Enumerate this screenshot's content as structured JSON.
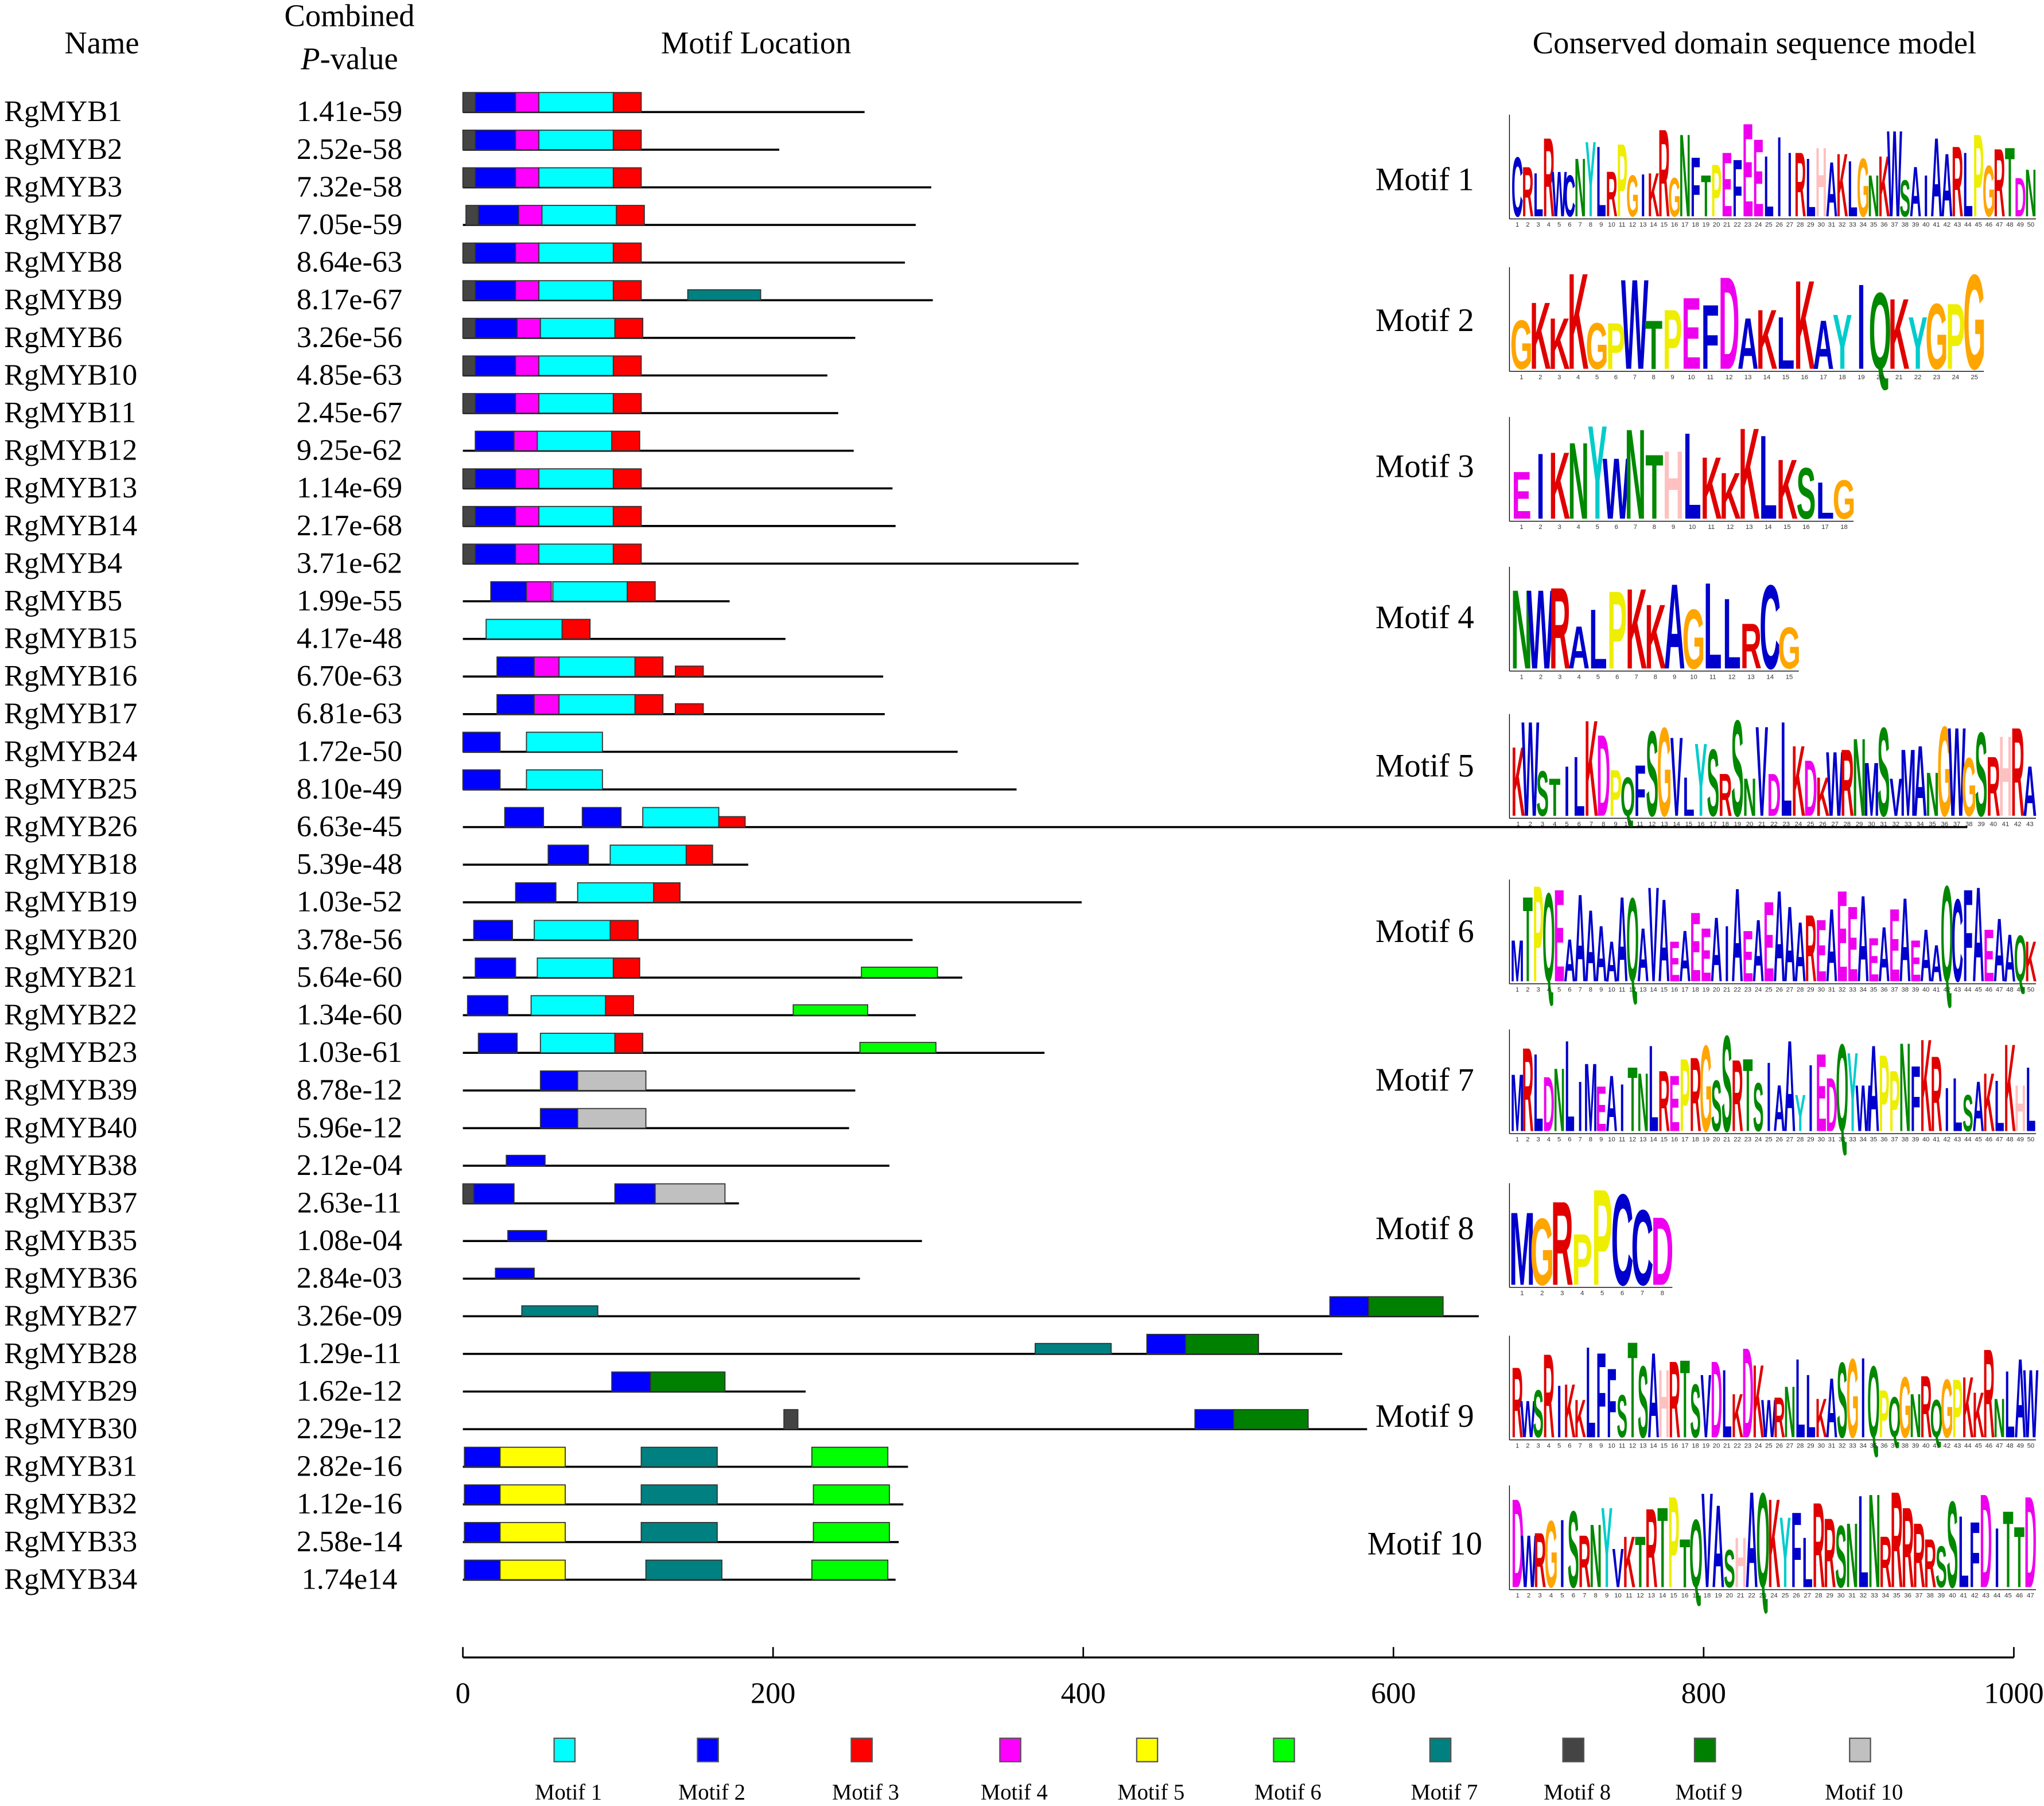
{
  "headers": {
    "name": "Name",
    "combined": "Combined",
    "p_italic": "P",
    "p_rest": "-value",
    "motif_location": "Motif Location",
    "conserved": "Conserved domain sequence model"
  },
  "motif_colors": {
    "1": "#00ffff",
    "2": "#0000ff",
    "3": "#ff0000",
    "4": "#ff00ff",
    "5": "#ffff00",
    "6": "#00ff00",
    "7": "#008080",
    "8": "#444444",
    "9": "#008000",
    "10": "#c0c0c0"
  },
  "legend": [
    "Motif 1",
    "Motif 2",
    "Motif 3",
    "Motif 4",
    "Motif 5",
    "Motif 6",
    "Motif 7",
    "Motif 8",
    "Motif 9",
    "Motif 10"
  ],
  "axis": {
    "min": 0,
    "max": 1000,
    "ticks": [
      "0",
      "200",
      "400",
      "600",
      "800",
      "1000"
    ]
  },
  "proteins": [
    {
      "name": "RgMYB1",
      "p": "1.41e-59",
      "length": 259,
      "motifs": [
        [
          8,
          0,
          8
        ],
        [
          2,
          8,
          34
        ],
        [
          4,
          34,
          49
        ],
        [
          1,
          49,
          97
        ],
        [
          3,
          97,
          115
        ]
      ]
    },
    {
      "name": "RgMYB2",
      "p": "2.52e-58",
      "length": 204,
      "motifs": [
        [
          8,
          0,
          8
        ],
        [
          2,
          8,
          34
        ],
        [
          4,
          34,
          49
        ],
        [
          1,
          49,
          97
        ],
        [
          3,
          97,
          115
        ]
      ]
    },
    {
      "name": "RgMYB3",
      "p": "7.32e-58",
      "length": 302,
      "motifs": [
        [
          8,
          0,
          8
        ],
        [
          2,
          8,
          34
        ],
        [
          4,
          34,
          49
        ],
        [
          1,
          49,
          97
        ],
        [
          3,
          97,
          115
        ]
      ]
    },
    {
      "name": "RgMYB7",
      "p": "7.05e-59",
      "length": 292,
      "motifs": [
        [
          8,
          2,
          10
        ],
        [
          2,
          10,
          36
        ],
        [
          4,
          36,
          51
        ],
        [
          1,
          51,
          99
        ],
        [
          3,
          99,
          117
        ]
      ]
    },
    {
      "name": "RgMYB8",
      "p": "8.64e-63",
      "length": 285,
      "motifs": [
        [
          8,
          0,
          8
        ],
        [
          2,
          8,
          34
        ],
        [
          4,
          34,
          49
        ],
        [
          1,
          49,
          97
        ],
        [
          3,
          97,
          115
        ]
      ]
    },
    {
      "name": "RgMYB9",
      "p": "8.17e-67",
      "length": 303,
      "motifs": [
        [
          8,
          0,
          8
        ],
        [
          2,
          8,
          34
        ],
        [
          4,
          34,
          49
        ],
        [
          1,
          49,
          97
        ],
        [
          3,
          97,
          115
        ],
        [
          7,
          145,
          192
        ]
      ]
    },
    {
      "name": "RgMYB6",
      "p": "3.26e-56",
      "length": 253,
      "motifs": [
        [
          8,
          0,
          8
        ],
        [
          2,
          8,
          35
        ],
        [
          4,
          35,
          50
        ],
        [
          1,
          50,
          98
        ],
        [
          3,
          98,
          116
        ]
      ]
    },
    {
      "name": "RgMYB10",
      "p": "4.85e-63",
      "length": 235,
      "motifs": [
        [
          8,
          0,
          8
        ],
        [
          2,
          8,
          34
        ],
        [
          4,
          34,
          49
        ],
        [
          1,
          49,
          97
        ],
        [
          3,
          97,
          115
        ]
      ]
    },
    {
      "name": "RgMYB11",
      "p": "2.45e-67",
      "length": 242,
      "motifs": [
        [
          8,
          0,
          8
        ],
        [
          2,
          8,
          34
        ],
        [
          4,
          34,
          49
        ],
        [
          1,
          49,
          97
        ],
        [
          3,
          97,
          115
        ]
      ]
    },
    {
      "name": "RgMYB12",
      "p": "9.25e-62",
      "length": 252,
      "motifs": [
        [
          2,
          8,
          33
        ],
        [
          4,
          33,
          48
        ],
        [
          1,
          48,
          96
        ],
        [
          3,
          96,
          114
        ]
      ]
    },
    {
      "name": "RgMYB13",
      "p": "1.14e-69",
      "length": 277,
      "motifs": [
        [
          8,
          0,
          8
        ],
        [
          2,
          8,
          34
        ],
        [
          4,
          34,
          49
        ],
        [
          1,
          49,
          97
        ],
        [
          3,
          97,
          115
        ]
      ]
    },
    {
      "name": "RgMYB14",
      "p": "2.17e-68",
      "length": 279,
      "motifs": [
        [
          8,
          0,
          8
        ],
        [
          2,
          8,
          34
        ],
        [
          4,
          34,
          49
        ],
        [
          1,
          49,
          97
        ],
        [
          3,
          97,
          115
        ]
      ]
    },
    {
      "name": "RgMYB4",
      "p": "3.71e-62",
      "length": 397,
      "motifs": [
        [
          8,
          0,
          8
        ],
        [
          2,
          8,
          34
        ],
        [
          4,
          34,
          49
        ],
        [
          1,
          49,
          97
        ],
        [
          3,
          97,
          115
        ]
      ]
    },
    {
      "name": "RgMYB5",
      "p": "1.99e-55",
      "length": 172,
      "motifs": [
        [
          2,
          18,
          41
        ],
        [
          4,
          41,
          57
        ],
        [
          1,
          58,
          106
        ],
        [
          3,
          106,
          124
        ]
      ]
    },
    {
      "name": "RgMYB15",
      "p": "4.17e-48",
      "length": 208,
      "motifs": [
        [
          1,
          15,
          64
        ],
        [
          3,
          64,
          82
        ]
      ]
    },
    {
      "name": "RgMYB16",
      "p": "6.70e-63",
      "length": 271,
      "motifs": [
        [
          2,
          22,
          46
        ],
        [
          4,
          46,
          62
        ],
        [
          1,
          62,
          111
        ],
        [
          3,
          111,
          129
        ],
        [
          3,
          137,
          155
        ]
      ]
    },
    {
      "name": "RgMYB17",
      "p": "6.81e-63",
      "length": 272,
      "motifs": [
        [
          2,
          22,
          46
        ],
        [
          4,
          46,
          62
        ],
        [
          1,
          62,
          111
        ],
        [
          3,
          111,
          129
        ],
        [
          3,
          137,
          155
        ]
      ]
    },
    {
      "name": "RgMYB24",
      "p": "1.72e-50",
      "length": 319,
      "motifs": [
        [
          2,
          0,
          24
        ],
        [
          1,
          41,
          90
        ]
      ]
    },
    {
      "name": "RgMYB25",
      "p": "8.10e-49",
      "length": 357,
      "motifs": [
        [
          2,
          0,
          24
        ],
        [
          1,
          41,
          90
        ]
      ]
    },
    {
      "name": "RgMYB26",
      "p": "6.63e-45",
      "length": 970,
      "motifs": [
        [
          2,
          27,
          52
        ],
        [
          2,
          77,
          102
        ],
        [
          1,
          116,
          165
        ],
        [
          3,
          165,
          182
        ]
      ]
    },
    {
      "name": "RgMYB18",
      "p": "5.39e-48",
      "length": 184,
      "motifs": [
        [
          2,
          55,
          81
        ],
        [
          1,
          95,
          144
        ],
        [
          3,
          144,
          161
        ]
      ]
    },
    {
      "name": "RgMYB19",
      "p": "1.03e-52",
      "length": 399,
      "motifs": [
        [
          2,
          34,
          60
        ],
        [
          1,
          74,
          123
        ],
        [
          3,
          123,
          140
        ]
      ]
    },
    {
      "name": "RgMYB20",
      "p": "3.78e-56",
      "length": 290,
      "motifs": [
        [
          2,
          7,
          32
        ],
        [
          1,
          46,
          95
        ],
        [
          3,
          95,
          113
        ]
      ]
    },
    {
      "name": "RgMYB21",
      "p": "5.64e-60",
      "length": 322,
      "motifs": [
        [
          2,
          8,
          34
        ],
        [
          1,
          48,
          97
        ],
        [
          3,
          97,
          114
        ],
        [
          6,
          257,
          306
        ]
      ]
    },
    {
      "name": "RgMYB22",
      "p": "1.34e-60",
      "length": 292,
      "motifs": [
        [
          2,
          3,
          29
        ],
        [
          1,
          44,
          92
        ],
        [
          3,
          92,
          110
        ],
        [
          6,
          213,
          261
        ]
      ]
    },
    {
      "name": "RgMYB23",
      "p": "1.03e-61",
      "length": 375,
      "motifs": [
        [
          2,
          10,
          35
        ],
        [
          1,
          50,
          98
        ],
        [
          3,
          98,
          116
        ],
        [
          6,
          256,
          305
        ]
      ]
    },
    {
      "name": "RgMYB39",
      "p": "8.78e-12",
      "length": 253,
      "motifs": [
        [
          2,
          50,
          74
        ],
        [
          10,
          74,
          118
        ]
      ]
    },
    {
      "name": "RgMYB40",
      "p": "5.96e-12",
      "length": 249,
      "motifs": [
        [
          2,
          50,
          74
        ],
        [
          10,
          74,
          118
        ]
      ]
    },
    {
      "name": "RgMYB38",
      "p": "2.12e-04",
      "length": 275,
      "motifs": [
        [
          2,
          28,
          53
        ]
      ]
    },
    {
      "name": "RgMYB37",
      "p": "2.63e-11",
      "length": 178,
      "motifs": [
        [
          8,
          0,
          7
        ],
        [
          2,
          7,
          33
        ],
        [
          2,
          98,
          124
        ],
        [
          10,
          124,
          169
        ]
      ]
    },
    {
      "name": "RgMYB35",
      "p": "1.08e-04",
      "length": 296,
      "motifs": [
        [
          2,
          29,
          54
        ]
      ]
    },
    {
      "name": "RgMYB36",
      "p": "2.84e-03",
      "length": 256,
      "motifs": [
        [
          2,
          21,
          46
        ]
      ]
    },
    {
      "name": "RgMYB27",
      "p": "3.26e-09",
      "length": 655,
      "motifs": [
        [
          7,
          38,
          87
        ],
        [
          2,
          559,
          584
        ],
        [
          9,
          584,
          632
        ]
      ]
    },
    {
      "name": "RgMYB28",
      "p": "1.29e-11",
      "length": 567,
      "motifs": [
        [
          7,
          369,
          418
        ],
        [
          2,
          441,
          466
        ],
        [
          9,
          466,
          513
        ]
      ]
    },
    {
      "name": "RgMYB29",
      "p": "1.62e-12",
      "length": 221,
      "motifs": [
        [
          2,
          96,
          121
        ],
        [
          9,
          121,
          169
        ]
      ]
    },
    {
      "name": "RgMYB30",
      "p": "2.29e-12",
      "length": 583,
      "motifs": [
        [
          8,
          207,
          216
        ],
        [
          2,
          472,
          497
        ],
        [
          9,
          497,
          545
        ]
      ]
    },
    {
      "name": "RgMYB31",
      "p": "2.82e-16",
      "length": 287,
      "motifs": [
        [
          2,
          1,
          24
        ],
        [
          5,
          24,
          66
        ],
        [
          7,
          115,
          164
        ],
        [
          6,
          225,
          274
        ]
      ]
    },
    {
      "name": "RgMYB32",
      "p": "1.12e-16",
      "length": 284,
      "motifs": [
        [
          2,
          1,
          24
        ],
        [
          5,
          24,
          66
        ],
        [
          7,
          115,
          164
        ],
        [
          6,
          226,
          275
        ]
      ]
    },
    {
      "name": "RgMYB33",
      "p": "2.58e-14",
      "length": 281,
      "motifs": [
        [
          2,
          1,
          24
        ],
        [
          5,
          24,
          66
        ],
        [
          7,
          115,
          164
        ],
        [
          6,
          226,
          275
        ]
      ]
    },
    {
      "name": "RgMYB34",
      "p": "1.74e14",
      "length": 279,
      "motifs": [
        [
          2,
          1,
          24
        ],
        [
          5,
          24,
          66
        ],
        [
          7,
          118,
          167
        ],
        [
          6,
          225,
          274
        ]
      ]
    }
  ],
  "logos": [
    {
      "label": "Motif 1",
      "consensus": "CRLRWCNYLRPGIKRGNFTPEFEELIIRLHAKLGNKWSAIAARLPGRTDN"
    },
    {
      "label": "Motif 2",
      "consensus": "GKKKGPWTPEFDAKLKAYIQKYGPG"
    },
    {
      "label": "Motif 3",
      "consensus": "EIKNYWNTHLKKKLKSLG"
    },
    {
      "label": "Motif 4",
      "consensus": "NWRALPKKAGLLRCG"
    },
    {
      "label": "Motif 5",
      "consensus": "KWSTILKDPQFSGVLYSRSNVDLKDKWRNMSVMANGWGSRHRA"
    },
    {
      "label": "Motif 6",
      "consensus": "MTPQEAAAAAAQAVAEAEEAIAEAEAAAREAEEAEAEAEAAQCFAEAAQK"
    },
    {
      "label": "Motif 7",
      "consensus": "MRLDNLIMEAITNLREPRGSSRTSIAAYIEDQYWAPPNFKRILSAKLKHL"
    },
    {
      "label": "Motif 8",
      "consensus": "MGRPPCCD"
    },
    {
      "label": "Motif 9",
      "consensus": "RWSRIKKLFFSTSAHRTSVDLKDKWRNLLKASGIQPQGNRQGPKKRNLAW"
    },
    {
      "label": "Motif 10",
      "consensus": "DWRGISRNYVKTRTPTQVASHAQKYFLRRSNLNRRRRRSSLFDITTD"
    }
  ]
}
